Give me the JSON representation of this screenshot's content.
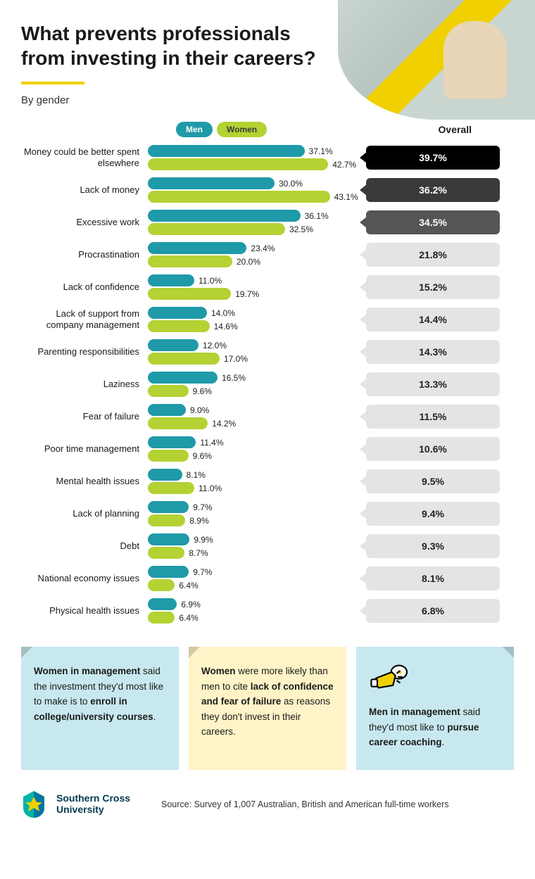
{
  "title": "What prevents professionals from investing in their careers?",
  "subtitle": "By gender",
  "legend": {
    "men": "Men",
    "women": "Women",
    "overall": "Overall"
  },
  "colors": {
    "men": "#1f9aa8",
    "women": "#b4d233",
    "accent": "#f0d000",
    "overall_pills": [
      "#000000",
      "#3a3a3a",
      "#555555"
    ],
    "overall_default_bg": "#e4e4e4",
    "overall_default_fg": "#222222",
    "callout_blue": "#c8e8ef",
    "callout_yellow": "#fff4c8"
  },
  "bar_max_pct": 50,
  "rows": [
    {
      "label": "Money could be better spent elsewhere",
      "men": 37.1,
      "women": 42.7,
      "overall": 39.7,
      "pill": 0
    },
    {
      "label": "Lack of money",
      "men": 30.0,
      "women": 43.1,
      "overall": 36.2,
      "pill": 1
    },
    {
      "label": "Excessive work",
      "men": 36.1,
      "women": 32.5,
      "overall": 34.5,
      "pill": 2
    },
    {
      "label": "Procrastination",
      "men": 23.4,
      "women": 20.0,
      "overall": 21.8
    },
    {
      "label": "Lack of confidence",
      "men": 11.0,
      "women": 19.7,
      "overall": 15.2
    },
    {
      "label": "Lack of support from company management",
      "men": 14.0,
      "women": 14.6,
      "overall": 14.4
    },
    {
      "label": "Parenting responsibilities",
      "men": 12.0,
      "women": 17.0,
      "overall": 14.3
    },
    {
      "label": "Laziness",
      "men": 16.5,
      "women": 9.6,
      "overall": 13.3
    },
    {
      "label": "Fear of failure",
      "men": 9.0,
      "women": 14.2,
      "overall": 11.5
    },
    {
      "label": "Poor time management",
      "men": 11.4,
      "women": 9.6,
      "overall": 10.6
    },
    {
      "label": "Mental health issues",
      "men": 8.1,
      "women": 11.0,
      "overall": 9.5
    },
    {
      "label": "Lack of planning",
      "men": 9.7,
      "women": 8.9,
      "overall": 9.4
    },
    {
      "label": "Debt",
      "men": 9.9,
      "women": 8.7,
      "overall": 9.3
    },
    {
      "label": "National economy issues",
      "men": 9.7,
      "women": 6.4,
      "overall": 8.1
    },
    {
      "label": "Physical health issues",
      "men": 6.9,
      "women": 6.4,
      "overall": 6.8
    }
  ],
  "callouts": [
    {
      "bg": "callout_blue",
      "fold": "left",
      "html": "<b>Women in management</b> said the investment they'd most like to make is to <b>enroll in college/university courses</b>."
    },
    {
      "bg": "callout_yellow",
      "fold": "left",
      "html": "<b>Women</b> were more likely than men to cite <b>lack of confidence and fear of failure</b> as reasons they don't invest in their careers."
    },
    {
      "bg": "callout_blue",
      "fold": "right",
      "icon": true,
      "html": "<b>Men in management</b> said they'd most like to <b>pursue career coaching</b>."
    }
  ],
  "footer": {
    "brand1": "Southern Cross",
    "brand2": "University",
    "source": "Source: Survey of 1,007 Australian, British and American full-time workers"
  }
}
